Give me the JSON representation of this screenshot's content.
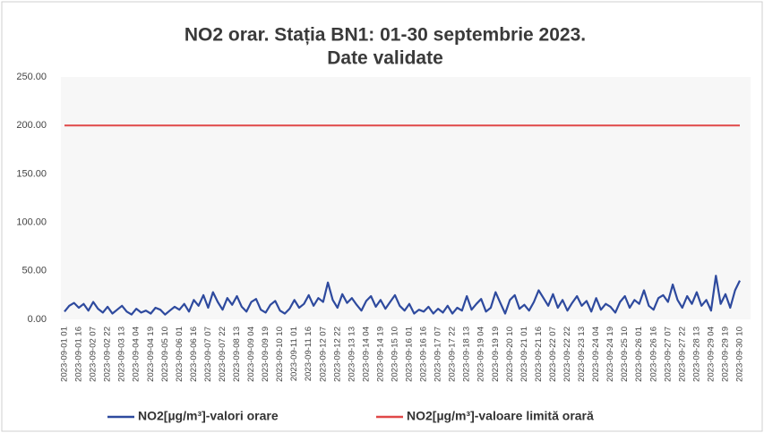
{
  "chart_data": {
    "type": "line",
    "title": "NO2 orar. Stația BN1: 01-30 septembrie 2023.",
    "subtitle": "Date validate",
    "categories": [
      "2023-09-01 01",
      null,
      null,
      "2023-09-01 16",
      null,
      null,
      "2023-09-02 07",
      null,
      null,
      "2023-09-02 22",
      null,
      null,
      "2023-09-03 13",
      null,
      null,
      "2023-09-04 04",
      null,
      null,
      "2023-09-04 19",
      null,
      null,
      "2023-09-05 10",
      null,
      null,
      "2023-09-06 01",
      null,
      null,
      "2023-09-06 16",
      null,
      null,
      "2023-09-07 07",
      null,
      null,
      "2023-09-07 22",
      null,
      null,
      "2023-09-08 13",
      null,
      null,
      "2023-09-09 04",
      null,
      null,
      "2023-09-09 19",
      null,
      null,
      "2023-09-10 10",
      null,
      null,
      "2023-09-11 01",
      null,
      null,
      "2023-09-11 16",
      null,
      null,
      "2023-09-12 07",
      null,
      null,
      "2023-09-12 22",
      null,
      null,
      "2023-09-13 13",
      null,
      null,
      "2023-09-14 04",
      null,
      null,
      "2023-09-14 19",
      null,
      null,
      "2023-09-15 10",
      null,
      null,
      "2023-09-16 01",
      null,
      null,
      "2023-09-16 16",
      null,
      null,
      "2023-09-17 07",
      null,
      null,
      "2023-09-17 22",
      null,
      null,
      "2023-09-18 13",
      null,
      null,
      "2023-09-19 04",
      null,
      null,
      "2023-09-19 19",
      null,
      null,
      "2023-09-20 10",
      null,
      null,
      "2023-09-21 01",
      null,
      null,
      "2023-09-21 16",
      null,
      null,
      "2023-09-22 07",
      null,
      null,
      "2023-09-22 22",
      null,
      null,
      "2023-09-23 13",
      null,
      null,
      "2023-09-24 04",
      null,
      null,
      "2023-09-24 19",
      null,
      null,
      "2023-09-25 10",
      null,
      null,
      "2023-09-26 01",
      null,
      null,
      "2023-09-26 16",
      null,
      null,
      "2023-09-27 07",
      null,
      null,
      "2023-09-27 22",
      null,
      null,
      "2023-09-28 13",
      null,
      null,
      "2023-09-29 04",
      null,
      null,
      "2023-09-29 19",
      null,
      null,
      "2023-09-30 10"
    ],
    "series": [
      {
        "name": "NO2[µg/m³]-valori orare",
        "color": "#2e4a9e",
        "values": [
          8,
          14,
          17,
          12,
          16,
          9,
          18,
          11,
          7,
          13,
          6,
          10,
          14,
          8,
          5,
          11,
          7,
          9,
          6,
          12,
          10,
          5,
          9,
          13,
          10,
          16,
          8,
          20,
          14,
          25,
          12,
          28,
          18,
          10,
          22,
          15,
          24,
          13,
          8,
          18,
          21,
          10,
          7,
          15,
          19,
          9,
          6,
          11,
          20,
          12,
          16,
          25,
          14,
          22,
          18,
          38,
          20,
          12,
          26,
          17,
          22,
          15,
          9,
          19,
          24,
          13,
          20,
          11,
          18,
          25,
          14,
          9,
          16,
          6,
          10,
          8,
          13,
          6,
          11,
          7,
          14,
          6,
          12,
          9,
          24,
          10,
          16,
          21,
          8,
          12,
          28,
          17,
          6,
          20,
          25,
          11,
          15,
          9,
          18,
          30,
          22,
          14,
          26,
          12,
          20,
          9,
          17,
          24,
          14,
          19,
          8,
          22,
          10,
          16,
          13,
          7,
          18,
          24,
          12,
          20,
          16,
          30,
          14,
          10,
          22,
          25,
          18,
          36,
          20,
          12,
          24,
          16,
          28,
          14,
          20,
          9,
          45,
          16,
          26,
          12,
          30,
          40
        ]
      },
      {
        "name": "NO2[µg/m³]-valoare limită orară",
        "color": "#e04848",
        "values": [
          200,
          200,
          200,
          200,
          200,
          200,
          200,
          200,
          200,
          200,
          200,
          200,
          200,
          200,
          200,
          200,
          200,
          200,
          200,
          200,
          200,
          200,
          200,
          200,
          200,
          200,
          200,
          200,
          200,
          200,
          200,
          200,
          200,
          200,
          200,
          200,
          200,
          200,
          200,
          200,
          200,
          200,
          200,
          200,
          200,
          200,
          200,
          200,
          200,
          200,
          200,
          200,
          200,
          200,
          200,
          200,
          200,
          200,
          200,
          200,
          200,
          200,
          200,
          200,
          200,
          200,
          200,
          200,
          200,
          200,
          200,
          200,
          200,
          200,
          200,
          200,
          200,
          200,
          200,
          200,
          200,
          200,
          200,
          200,
          200,
          200,
          200,
          200,
          200,
          200,
          200,
          200,
          200,
          200,
          200,
          200,
          200,
          200,
          200,
          200,
          200,
          200,
          200,
          200,
          200,
          200,
          200,
          200,
          200,
          200,
          200,
          200,
          200,
          200,
          200,
          200,
          200,
          200,
          200,
          200,
          200,
          200,
          200,
          200,
          200,
          200,
          200,
          200,
          200,
          200,
          200,
          200,
          200,
          200,
          200,
          200,
          200,
          200,
          200,
          200,
          200,
          200
        ]
      }
    ],
    "ylim": [
      0,
      250
    ],
    "yticks": [
      {
        "value": 0,
        "label": "0.00"
      },
      {
        "value": 50,
        "label": "50.00"
      },
      {
        "value": 100,
        "label": "100.00"
      },
      {
        "value": 150,
        "label": "150.00"
      },
      {
        "value": 200,
        "label": "200.00"
      },
      {
        "value": 250,
        "label": "250.00"
      }
    ],
    "grid": false,
    "legend": "bottom"
  }
}
